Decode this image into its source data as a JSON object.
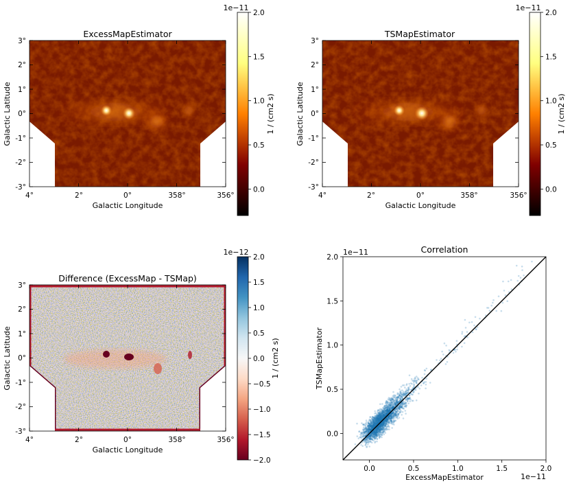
{
  "chart_data": [
    {
      "type": "heatmap",
      "title": "ExcessMapEstimator",
      "xlabel": "Galactic Longitude",
      "ylabel": "Galactic Latitude",
      "xticks": [
        "4°",
        "2°",
        "0°",
        "358°",
        "356°"
      ],
      "yticks": [
        "3°",
        "2°",
        "1°",
        "0°",
        "-1°",
        "-2°",
        "-3°"
      ],
      "colorbar": {
        "label": "1 / (cm2 s)",
        "offset": "1e−11",
        "range": [
          -0.3,
          2.0
        ],
        "ticks": [
          "2.0",
          "1.5",
          "1.0",
          "0.5",
          "0.0"
        ],
        "tick_values": [
          2.0,
          1.5,
          1.0,
          0.5,
          0.0
        ],
        "cmap": "afmhot"
      }
    },
    {
      "type": "heatmap",
      "title": "TSMapEstimator",
      "xlabel": "Galactic Longitude",
      "ylabel": "Galactic Latitude",
      "xticks": [
        "4°",
        "2°",
        "0°",
        "358°",
        "356°"
      ],
      "yticks": [
        "3°",
        "2°",
        "1°",
        "0°",
        "-1°",
        "-2°",
        "-3°"
      ],
      "colorbar": {
        "label": "1 / (cm2 s)",
        "offset": "1e−11",
        "range": [
          -0.3,
          2.0
        ],
        "ticks": [
          "2.0",
          "1.5",
          "1.0",
          "0.5",
          "0.0"
        ],
        "tick_values": [
          2.0,
          1.5,
          1.0,
          0.5,
          0.0
        ],
        "cmap": "afmhot"
      }
    },
    {
      "type": "heatmap",
      "title": "Difference (ExcessMap - TSMap)",
      "xlabel": "Galactic Longitude",
      "ylabel": "Galactic Latitude",
      "xticks": [
        "4°",
        "2°",
        "0°",
        "358°",
        "356°"
      ],
      "yticks": [
        "3°",
        "2°",
        "1°",
        "0°",
        "-1°",
        "-2°",
        "-3°"
      ],
      "colorbar": {
        "label": "1 / (cm2 s)",
        "offset": "1e−12",
        "range": [
          -2.0,
          2.0
        ],
        "ticks": [
          "2.0",
          "1.5",
          "1.0",
          "0.5",
          "0.0",
          "−0.5",
          "−1.0",
          "−1.5",
          "−2.0"
        ],
        "tick_values": [
          2.0,
          1.5,
          1.0,
          0.5,
          0.0,
          -0.5,
          -1.0,
          -1.5,
          -2.0
        ],
        "cmap": "RdBu"
      }
    },
    {
      "type": "scatter",
      "title": "Correlation",
      "xlabel": "ExcessMapEstimator",
      "ylabel": "TSMapEstimator",
      "x_offset": "1e−11",
      "y_offset": "1e−11",
      "xlim": [
        -0.3,
        2.0
      ],
      "ylim": [
        -0.3,
        2.0
      ],
      "xticks": [
        "0.0",
        "0.5",
        "1.0",
        "1.5",
        "2.0"
      ],
      "xtick_values": [
        0.0,
        0.5,
        1.0,
        1.5,
        2.0
      ],
      "yticks": [
        "0.0",
        "0.5",
        "1.0",
        "1.5",
        "2.0"
      ],
      "ytick_values": [
        0.0,
        0.5,
        1.0,
        1.5,
        2.0
      ],
      "reference_line": [
        [
          -0.3,
          -0.3
        ],
        [
          2.0,
          2.0
        ]
      ],
      "point_color": "#1f77b4",
      "line_color": "#000000"
    }
  ]
}
